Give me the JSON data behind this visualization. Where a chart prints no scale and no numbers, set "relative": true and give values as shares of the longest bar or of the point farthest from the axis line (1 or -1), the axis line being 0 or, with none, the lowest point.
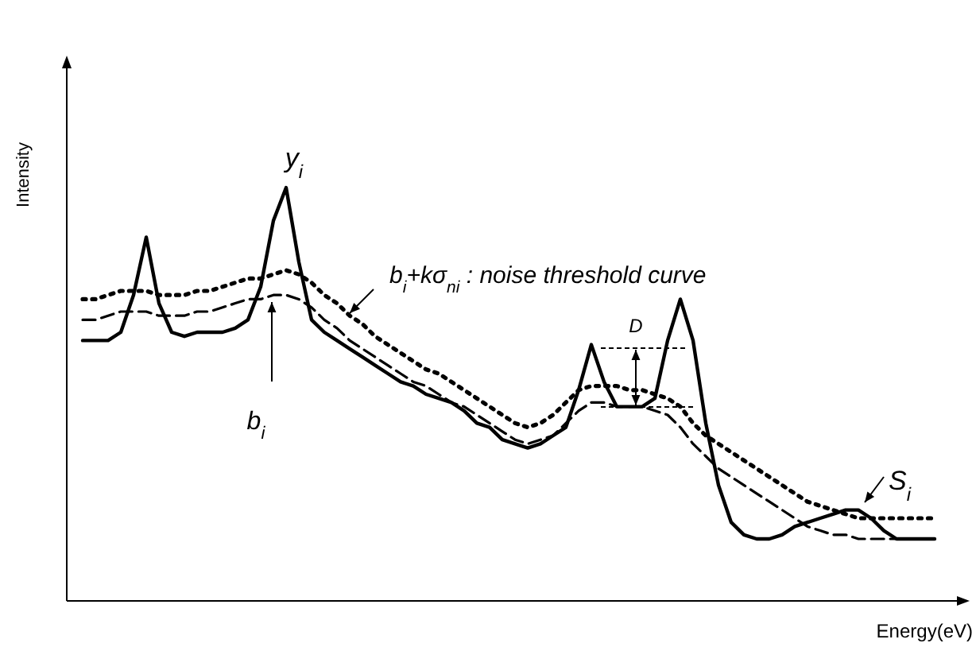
{
  "chart_data": {
    "type": "line",
    "relative": true,
    "xlabel": "Energy(eV)",
    "ylabel": "Intensity",
    "tick_labels": false,
    "marker": "none",
    "categories": [
      null,
      null,
      null,
      null,
      null,
      null,
      null,
      null,
      null,
      null,
      null,
      null,
      null,
      null,
      null,
      null,
      null,
      null,
      null,
      null,
      null,
      null,
      null,
      null,
      null,
      null,
      null,
      null,
      null,
      null,
      null,
      null,
      null,
      null,
      null,
      null,
      null,
      null,
      null,
      null,
      null,
      null,
      null,
      null,
      null,
      null,
      null,
      null,
      null,
      null,
      null,
      null,
      null,
      null,
      null,
      null,
      null,
      null,
      null,
      null,
      null,
      null,
      null,
      null,
      null,
      null,
      null,
      null
    ],
    "series": [
      {
        "color": "#000000",
        "line_style": "solid",
        "values": [
          0.63,
          0.63,
          0.63,
          0.65,
          0.74,
          0.88,
          0.72,
          0.65,
          0.64,
          0.65,
          0.65,
          0.65,
          0.66,
          0.68,
          0.76,
          0.92,
          1,
          0.82,
          0.68,
          0.65,
          0.63,
          0.61,
          0.59,
          0.57,
          0.55,
          0.53,
          0.52,
          0.5,
          0.49,
          0.48,
          0.46,
          0.43,
          0.42,
          0.39,
          0.38,
          0.37,
          0.38,
          0.4,
          0.42,
          0.51,
          0.62,
          0.53,
          0.47,
          0.47,
          0.47,
          0.49,
          0.63,
          0.73,
          0.63,
          0.43,
          0.28,
          0.19,
          0.16,
          0.15,
          0.15,
          0.16,
          0.18,
          0.19,
          0.2,
          0.21,
          0.22,
          0.22,
          0.2,
          0.17,
          0.15,
          0.15,
          0.15,
          0.15
        ]
      },
      {
        "color": "#000000",
        "line_style": "dashed",
        "values": [
          0.68,
          0.68,
          0.69,
          0.7,
          0.7,
          0.7,
          0.69,
          0.69,
          0.69,
          0.7,
          0.7,
          0.71,
          0.72,
          0.73,
          0.73,
          0.74,
          0.74,
          0.73,
          0.71,
          0.68,
          0.66,
          0.63,
          0.61,
          0.59,
          0.57,
          0.55,
          0.53,
          0.52,
          0.5,
          0.48,
          0.47,
          0.45,
          0.43,
          0.41,
          0.39,
          0.38,
          0.39,
          0.4,
          0.43,
          0.46,
          0.48,
          0.48,
          0.47,
          0.47,
          0.47,
          0.46,
          0.45,
          0.42,
          0.38,
          0.35,
          0.32,
          0.3,
          0.28,
          0.26,
          0.24,
          0.22,
          0.2,
          0.18,
          0.17,
          0.16,
          0.16,
          0.15,
          0.15,
          0.15,
          0.15,
          0.15,
          0.15,
          0.15
        ]
      },
      {
        "color": "#000000",
        "line_style": "dotted",
        "values": [
          0.73,
          0.73,
          0.74,
          0.75,
          0.75,
          0.75,
          0.74,
          0.74,
          0.74,
          0.75,
          0.75,
          0.76,
          0.77,
          0.78,
          0.78,
          0.79,
          0.8,
          0.79,
          0.77,
          0.74,
          0.72,
          0.69,
          0.67,
          0.64,
          0.62,
          0.6,
          0.58,
          0.56,
          0.55,
          0.53,
          0.51,
          0.49,
          0.47,
          0.45,
          0.43,
          0.42,
          0.43,
          0.45,
          0.48,
          0.51,
          0.52,
          0.52,
          0.52,
          0.51,
          0.51,
          0.5,
          0.49,
          0.47,
          0.43,
          0.4,
          0.38,
          0.36,
          0.34,
          0.32,
          0.3,
          0.28,
          0.26,
          0.24,
          0.23,
          0.22,
          0.21,
          0.2,
          0.2,
          0.2,
          0.2,
          0.2,
          0.2,
          0.2
        ]
      }
    ],
    "annotations": [
      "y$_{i}$",
      "b$_{i}$+kσ$_{ni}$ : noise threshold curve",
      "b$_{i}$",
      "D",
      "S$_{i}$"
    ]
  }
}
